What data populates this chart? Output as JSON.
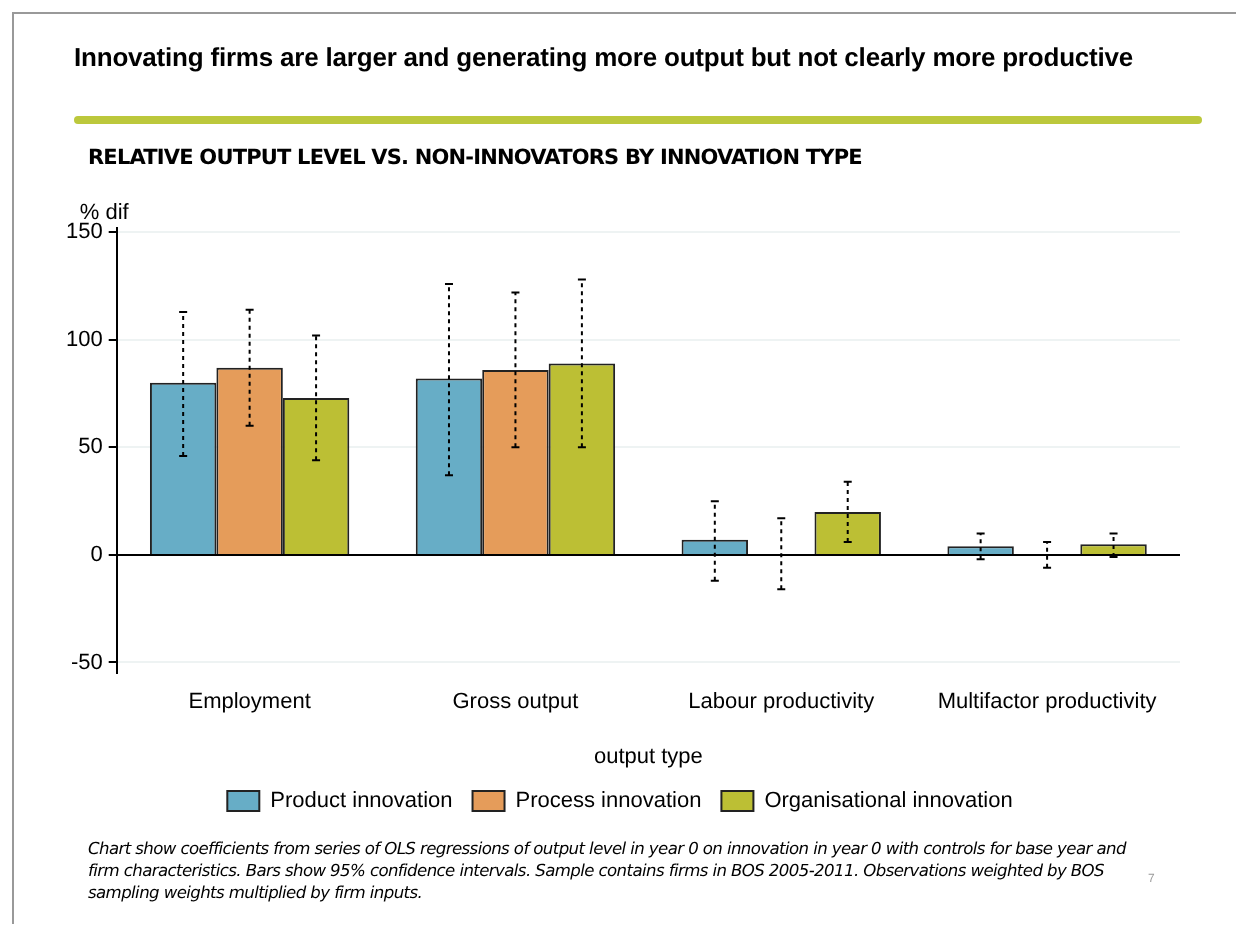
{
  "chart_data": {
    "type": "bar",
    "title": "Innovating firms are larger and generating more output but not clearly more productive",
    "subtitle": "RELATIVE OUTPUT LEVEL VS. NON-INNOVATORS BY INNOVATION TYPE",
    "ylabel": "% dif",
    "xlabel": "output type",
    "categories": [
      "Employment",
      "Gross output",
      "Labour productivity",
      "Multifactor productivity"
    ],
    "series": [
      {
        "name": "Product innovation",
        "color": "#67adc6",
        "values": [
          80,
          82,
          7,
          4
        ],
        "errors": [
          [
            46,
            113
          ],
          [
            37,
            126
          ],
          [
            -12,
            25
          ],
          [
            -2,
            10
          ]
        ]
      },
      {
        "name": "Process innovation",
        "color": "#e59c5a",
        "values": [
          87,
          86,
          0,
          0
        ],
        "errors": [
          [
            60,
            114
          ],
          [
            50,
            122
          ],
          [
            -16,
            17
          ],
          [
            -6,
            6
          ]
        ]
      },
      {
        "name": "Organisational innovation",
        "color": "#bcbf34",
        "values": [
          73,
          89,
          20,
          5
        ],
        "errors": [
          [
            44,
            102
          ],
          [
            50,
            128
          ],
          [
            6,
            34
          ],
          [
            -1,
            10
          ]
        ]
      }
    ],
    "ylim": [
      -55,
      152
    ],
    "yticks": [
      -50,
      0,
      50,
      100,
      150
    ],
    "grid": "y",
    "legend": "bottom",
    "annotations": [
      "Chart show coefficients from series of OLS regressions of output level in year 0 on innovation in year 0 with controls for base year and firm characteristics. Bars show 95% confidence intervals. Sample contains firms in BOS 2005-2011. Observations weighted by BOS sampling weights multiplied by firm inputs.",
      "7"
    ]
  }
}
